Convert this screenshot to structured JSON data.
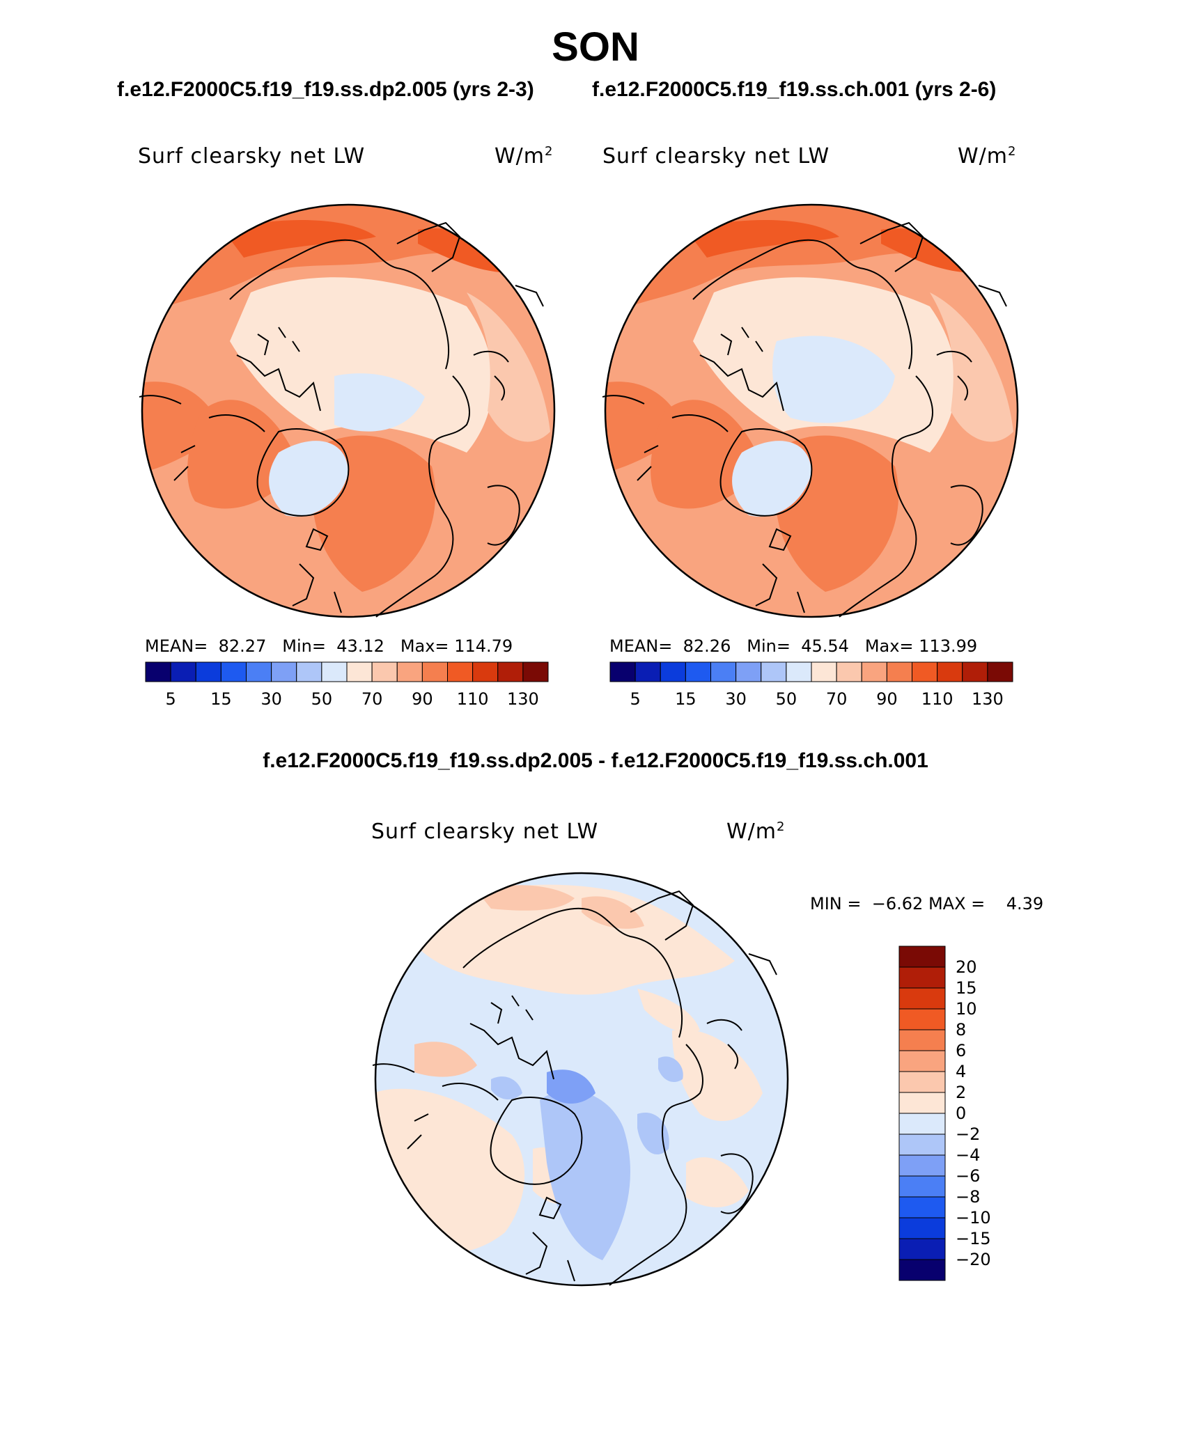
{
  "title": "SON",
  "cases": {
    "left": "f.e12.F2000C5.f19_f19.ss.dp2.005 (yrs 2-3)",
    "right": "f.e12.F2000C5.f19_f19.ss.ch.001 (yrs 2-6)",
    "diff": "f.e12.F2000C5.f19_f19.ss.dp2.005 - f.e12.F2000C5.f19_f19.ss.ch.001"
  },
  "panels": [
    {
      "variable": "Surf clearsky net LW",
      "units": "W/m",
      "units_sup": "2",
      "mean_label": "MEAN=",
      "mean": "82.27",
      "min_label": "Min=",
      "min": "43.12",
      "max_label": "Max=",
      "max": "114.79"
    },
    {
      "variable": "Surf clearsky net LW",
      "units": "W/m",
      "units_sup": "2",
      "mean_label": "MEAN=",
      "mean": "82.26",
      "min_label": "Min=",
      "min": "45.54",
      "max_label": "Max=",
      "max": "113.99"
    }
  ],
  "diff_panel": {
    "variable": "Surf clearsky net LW",
    "units": "W/m",
    "units_sup": "2",
    "min_label": "MIN =",
    "min": "−6.62",
    "max_label": "MAX =",
    "max": "4.39"
  },
  "abs_colorbar": {
    "colors": [
      "#08006e",
      "#0a1eb4",
      "#0b3cdc",
      "#1e5af0",
      "#4b7ff5",
      "#7ea0f6",
      "#aec6f8",
      "#dbe9fb",
      "#fde6d6",
      "#fbc8ae",
      "#f9a47f",
      "#f57f4f",
      "#f05a24",
      "#d93a0e",
      "#b01e08",
      "#7a0a05"
    ],
    "ticks": [
      "5",
      "15",
      "30",
      "50",
      "70",
      "90",
      "110",
      "130"
    ]
  },
  "diff_colorbar": {
    "colors": [
      "#08006e",
      "#0a1eb4",
      "#0b3cdc",
      "#1e5af0",
      "#4b7ff5",
      "#7ea0f6",
      "#aec6f8",
      "#dbe9fb",
      "#fde6d6",
      "#fbc8ae",
      "#f9a47f",
      "#f57f4f",
      "#f05a24",
      "#d93a0e",
      "#b01e08",
      "#7a0a05"
    ],
    "ticks": [
      "20",
      "15",
      "10",
      "8",
      "6",
      "4",
      "2",
      "0",
      "−2",
      "−4",
      "−6",
      "−8",
      "−10",
      "−15",
      "−20"
    ]
  }
}
